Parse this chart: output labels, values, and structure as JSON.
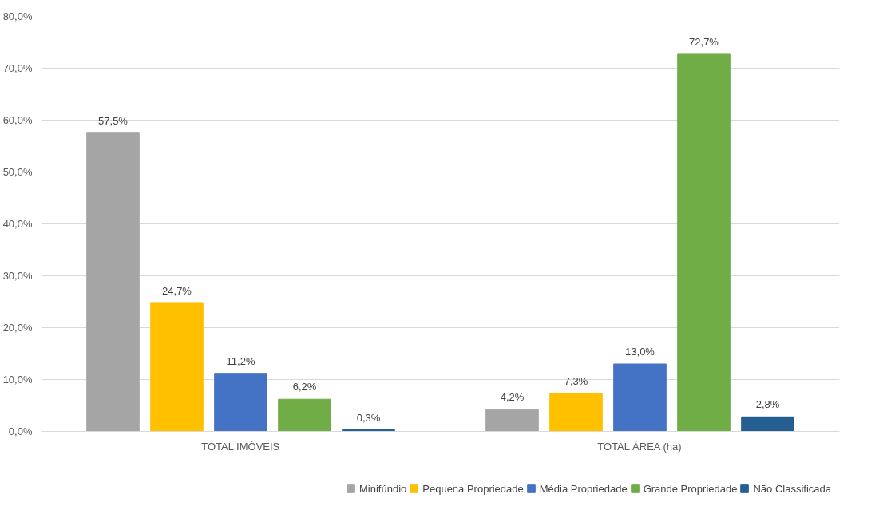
{
  "chart_data": {
    "type": "bar",
    "categories": [
      "TOTAL IMÓVEIS",
      "TOTAL ÁREA (ha)"
    ],
    "series": [
      {
        "name": "Minifúndio",
        "color": "#a5a5a5",
        "values": [
          57.5,
          4.2
        ],
        "value_labels": [
          "57,5%",
          "4,2%"
        ]
      },
      {
        "name": "Pequena Propriedade",
        "color": "#ffc000",
        "values": [
          24.7,
          7.3
        ],
        "value_labels": [
          "24,7%",
          "7,3%"
        ]
      },
      {
        "name": "Média Propriedade",
        "color": "#4472c4",
        "values": [
          11.2,
          13.0
        ],
        "value_labels": [
          "11,2%",
          "13,0%"
        ]
      },
      {
        "name": "Grande Propriedade",
        "color": "#70ad47",
        "values": [
          6.2,
          72.7
        ],
        "value_labels": [
          "6,2%",
          "72,7%"
        ]
      },
      {
        "name": "Não Classificada",
        "color": "#255e91",
        "values": [
          0.3,
          2.8
        ],
        "value_labels": [
          "0,3%",
          "2,8%"
        ]
      }
    ],
    "ylim": [
      0,
      80
    ],
    "yticks": [
      {
        "value": 0,
        "label": "0,0%"
      },
      {
        "value": 10,
        "label": "10,0%"
      },
      {
        "value": 20,
        "label": "20,0%"
      },
      {
        "value": 30,
        "label": "30,0%"
      },
      {
        "value": 40,
        "label": "40,0%"
      },
      {
        "value": 50,
        "label": "50,0%"
      },
      {
        "value": 60,
        "label": "60,0%"
      },
      {
        "value": 70,
        "label": "70,0%"
      },
      {
        "value": 80,
        "label": "80,0%"
      }
    ],
    "grid": "y",
    "legend": "bottom"
  }
}
